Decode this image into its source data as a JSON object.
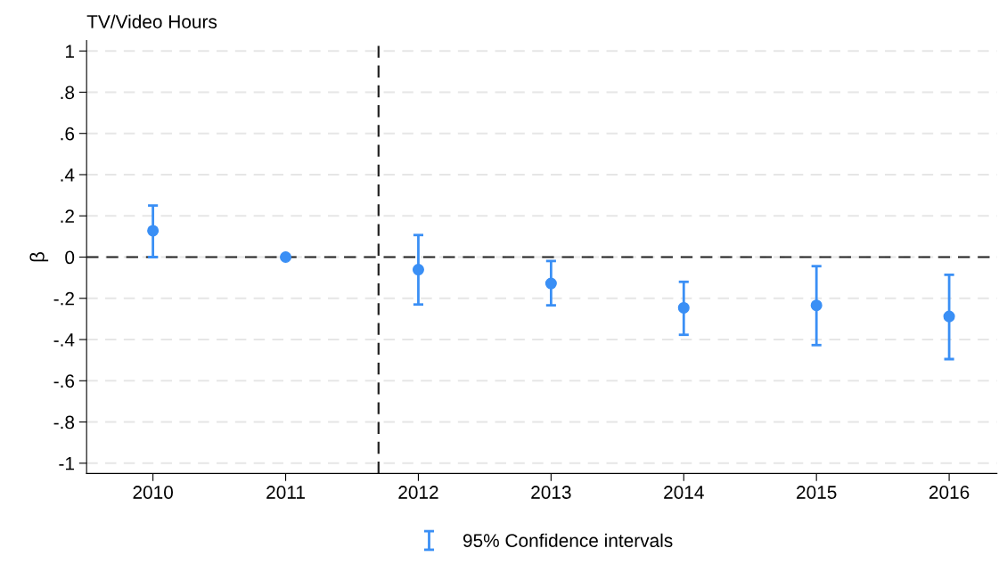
{
  "chart_data": {
    "type": "scatter",
    "title": "TV/Video Hours",
    "ylabel": "β",
    "x": [
      2010,
      2011,
      2012,
      2013,
      2014,
      2015,
      2016
    ],
    "series": [
      {
        "name": "95% Confidence intervals",
        "color": "#3a8ff5",
        "values": [
          0.128,
          0,
          -0.061,
          -0.128,
          -0.246,
          -0.234,
          -0.288
        ],
        "errors": [
          [
            0.0,
            0.25
          ],
          null,
          [
            -0.23,
            0.107
          ],
          [
            -0.234,
            -0.019
          ],
          [
            -0.377,
            -0.12
          ],
          [
            -0.427,
            -0.044
          ],
          [
            -0.495,
            -0.086
          ]
        ]
      }
    ],
    "xlim": [
      2009.5,
      2016.36
    ],
    "xticks": [
      2010,
      2011,
      2012,
      2013,
      2014,
      2015,
      2016
    ],
    "ylim": [
      -1.05,
      1.05
    ],
    "yticks": [
      {
        "value": -1,
        "label": "-1"
      },
      {
        "value": -0.8,
        "label": "-.8"
      },
      {
        "value": -0.6,
        "label": "-.6"
      },
      {
        "value": -0.4,
        "label": "-.4"
      },
      {
        "value": -0.2,
        "label": "-.2"
      },
      {
        "value": 0,
        "label": "0"
      },
      {
        "value": 0.2,
        "label": ".2"
      },
      {
        "value": 0.4,
        "label": ".4"
      },
      {
        "value": 0.6,
        "label": ".6"
      },
      {
        "value": 0.8,
        "label": ".8"
      },
      {
        "value": 1,
        "label": "1"
      }
    ],
    "ref_lines": [
      {
        "axis": "y",
        "value": 0,
        "color": "#222222",
        "line_style": "dashed"
      },
      {
        "axis": "x",
        "value": 2011.7,
        "color": "#222222",
        "line_style": "dashed"
      }
    ],
    "grid": "y",
    "legend": "bottom",
    "marker": "circle"
  }
}
